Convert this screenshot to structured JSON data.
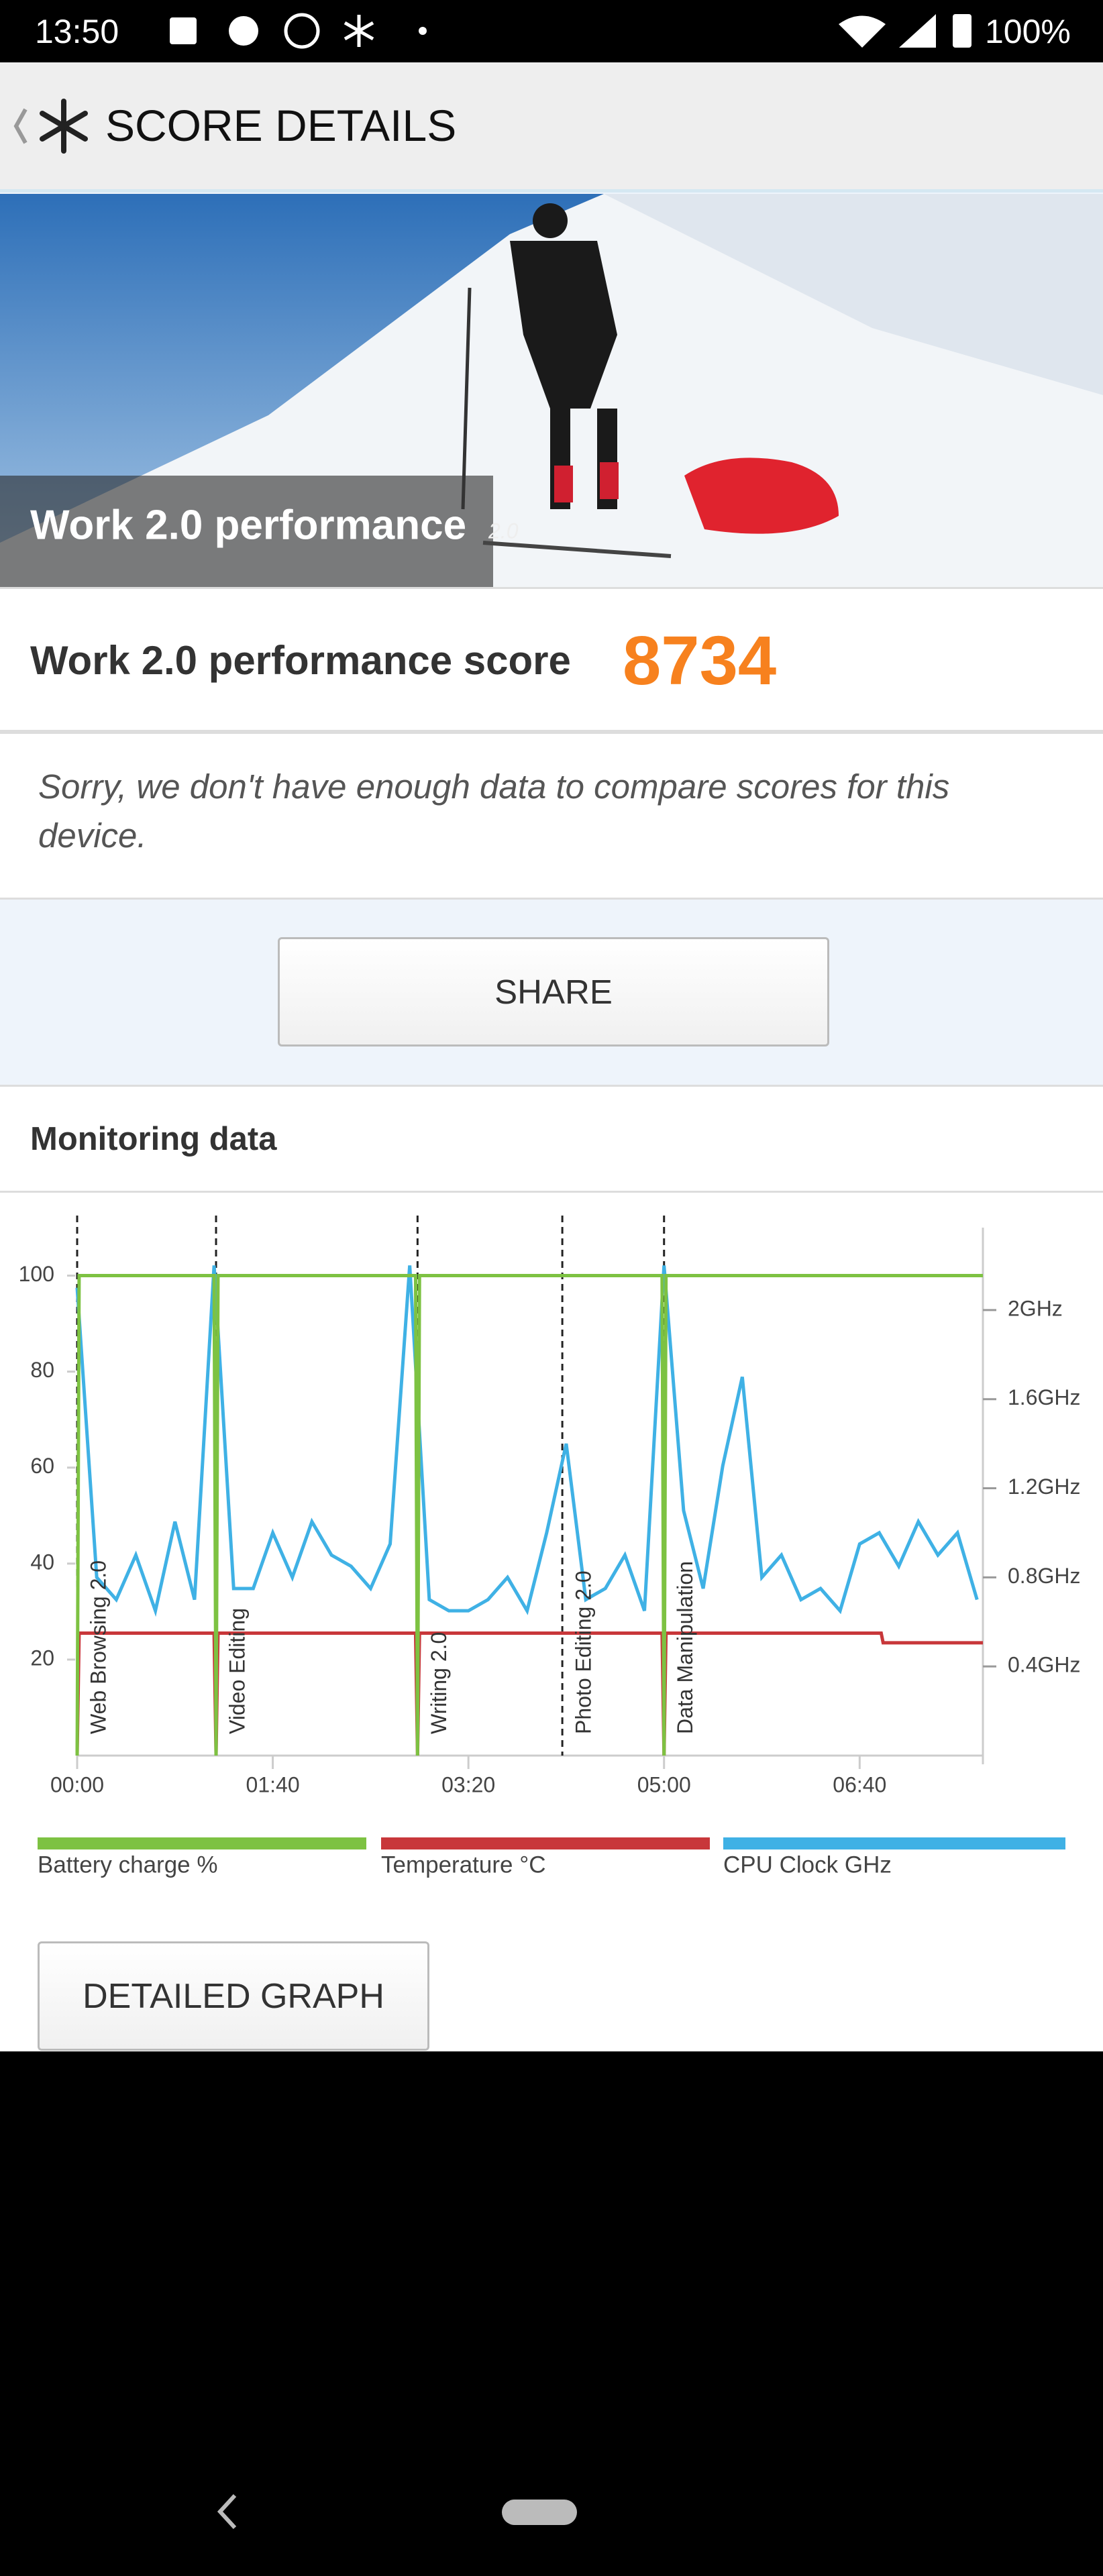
{
  "status_bar": {
    "time": "13:50",
    "battery": "100%"
  },
  "header": {
    "title": "SCORE DETAILS"
  },
  "banner": {
    "title": "Work 2.0 performance",
    "version": "2.0"
  },
  "score": {
    "label": "Work 2.0 performance score",
    "value": 8734
  },
  "message": "Sorry, we don't have enough data to compare scores for this device.",
  "share_button": "SHARE",
  "monitoring": {
    "title": "Monitoring data",
    "chart": {
      "type": "line",
      "xlim": [
        0,
        463
      ],
      "xticks": [
        {
          "value": 0,
          "label": "00:00"
        },
        {
          "value": 100,
          "label": "01:40"
        },
        {
          "value": 200,
          "label": "03:20"
        },
        {
          "value": 300,
          "label": "05:00"
        },
        {
          "value": 400,
          "label": "06:40"
        }
      ],
      "ylim": [
        0,
        110
      ],
      "yticks": [
        20,
        40,
        60,
        80,
        100
      ],
      "y2lim": [
        0,
        2.37
      ],
      "y2ticks": [
        {
          "value": 0.4,
          "label": "0.4GHz"
        },
        {
          "value": 0.8,
          "label": "0.8GHz"
        },
        {
          "value": 1.2,
          "label": "1.2GHz"
        },
        {
          "value": 1.6,
          "label": "1.6GHz"
        },
        {
          "value": 2,
          "label": "2GHz"
        }
      ],
      "events": [
        {
          "label": "Web Browsing 2.0",
          "x": 0
        },
        {
          "label": "Video Editing",
          "x": 71
        },
        {
          "label": "Writing 2.0",
          "x": 174
        },
        {
          "label": "Photo Editing 2.0",
          "x": 248
        },
        {
          "label": "Data Manipulation",
          "x": 300
        }
      ],
      "series": [
        {
          "name": "Battery charge %",
          "color": "#7dc242",
          "x": [
            0,
            1,
            70,
            71,
            72,
            173,
            174,
            175,
            299,
            300,
            301,
            463
          ],
          "values": [
            0,
            100,
            100,
            0,
            100,
            100,
            0,
            100,
            100,
            0,
            100,
            100
          ]
        },
        {
          "name": "Temperature °C",
          "color": "#c8373a",
          "x": [
            0,
            1,
            70,
            71,
            72,
            173,
            174,
            175,
            299,
            300,
            301,
            411,
            412,
            463
          ],
          "values": [
            0,
            25.5,
            25.5,
            0,
            25.5,
            25.5,
            0,
            25.5,
            25.5,
            0,
            25.5,
            25.5,
            23.5,
            23.5
          ]
        },
        {
          "name": "CPU Clock GHz",
          "color": "#3fb1e5",
          "axis": "y2",
          "x": [
            0,
            10,
            20,
            30,
            40,
            50,
            60,
            70,
            80,
            90,
            100,
            110,
            120,
            130,
            140,
            150,
            160,
            170,
            180,
            190,
            200,
            210,
            220,
            230,
            240,
            250,
            260,
            270,
            280,
            290,
            300,
            310,
            320,
            330,
            340,
            350,
            360,
            370,
            380,
            390,
            400,
            410,
            420,
            430,
            440,
            450,
            460
          ],
          "values": [
            2.1,
            0.8,
            0.7,
            0.9,
            0.65,
            1.05,
            0.7,
            2.2,
            0.75,
            0.75,
            1.0,
            0.8,
            1.05,
            0.9,
            0.85,
            0.75,
            0.95,
            2.2,
            0.7,
            0.65,
            0.65,
            0.7,
            0.8,
            0.65,
            1.0,
            1.4,
            0.7,
            0.75,
            0.9,
            0.65,
            2.2,
            1.1,
            0.75,
            1.3,
            1.7,
            0.8,
            0.9,
            0.7,
            0.75,
            0.65,
            0.95,
            1.0,
            0.85,
            1.05,
            0.9,
            1.0,
            0.7
          ]
        }
      ]
    },
    "detailed_graph_button": "DETAILED GRAPH"
  }
}
